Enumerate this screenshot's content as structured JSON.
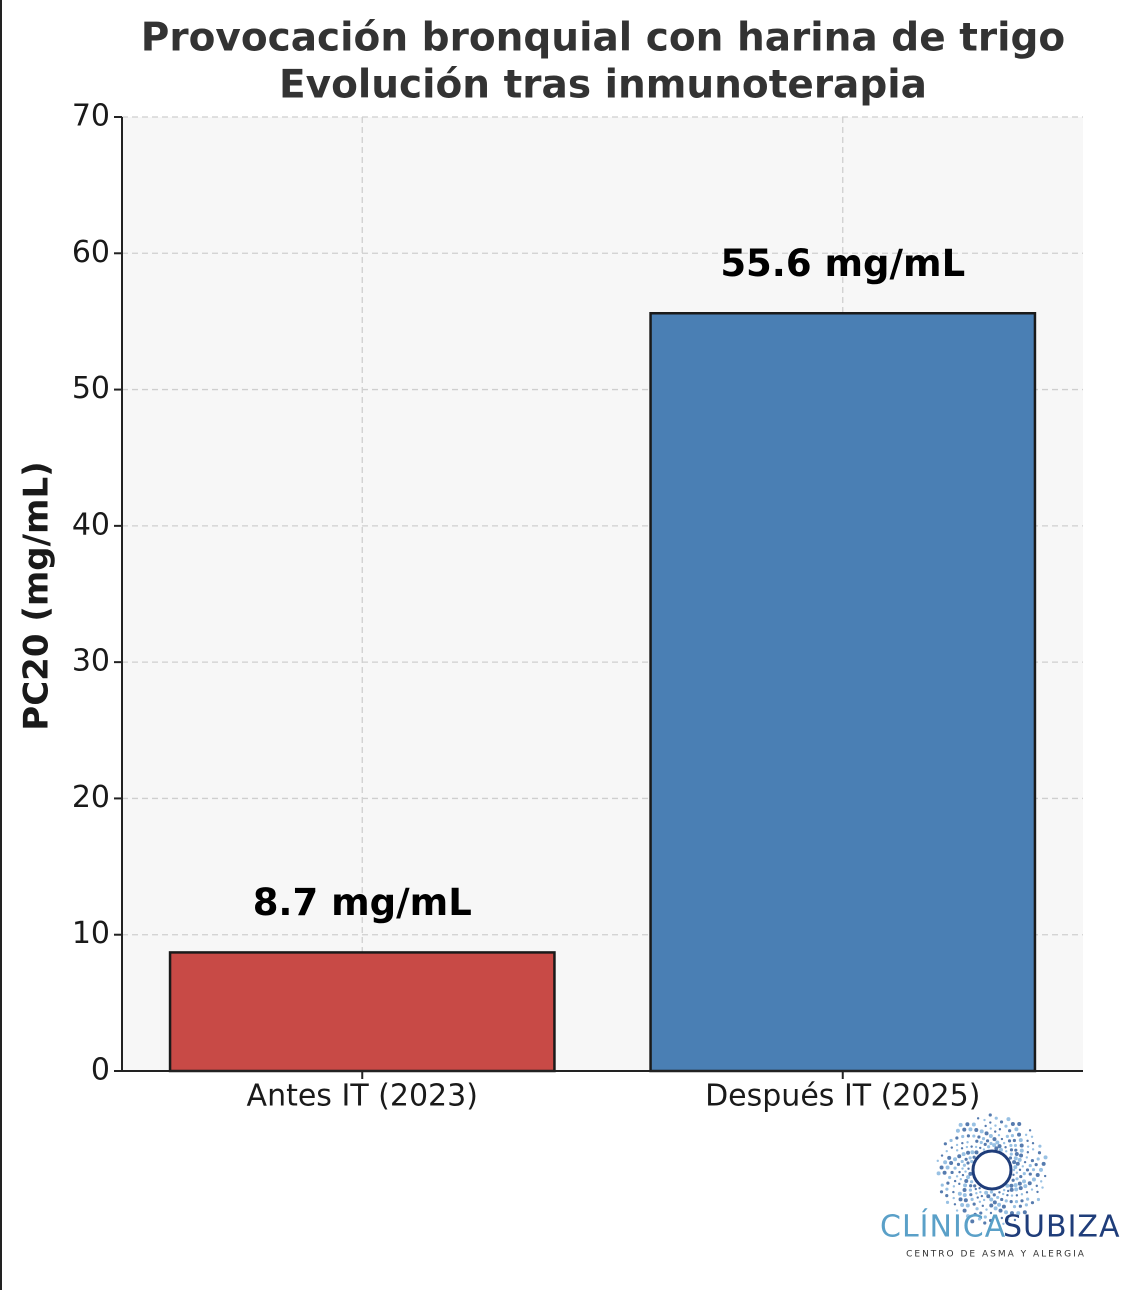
{
  "chart_data": {
    "type": "bar",
    "title": "Provocación bronquial con harina de trigo",
    "subtitle": "Evolución tras inmunoterapia",
    "y_label": "PC20 (mg/mL)",
    "categories": [
      "Antes IT (2023)",
      "Después IT (2025)"
    ],
    "values": [
      8.7,
      55.6
    ],
    "value_labels": [
      "8.7 mg/mL",
      "55.6 mg/mL"
    ],
    "colors": [
      "#c84a46",
      "#4a7fb4"
    ],
    "ylim": [
      0,
      70
    ],
    "yticks": [
      0,
      10,
      20,
      30,
      40,
      50,
      60,
      70
    ],
    "grid": true
  },
  "logo": {
    "name_left": "CLÍNICA",
    "name_right": "SUBIZA",
    "tagline": "CENTRO DE ASMA Y ALERGIA"
  }
}
